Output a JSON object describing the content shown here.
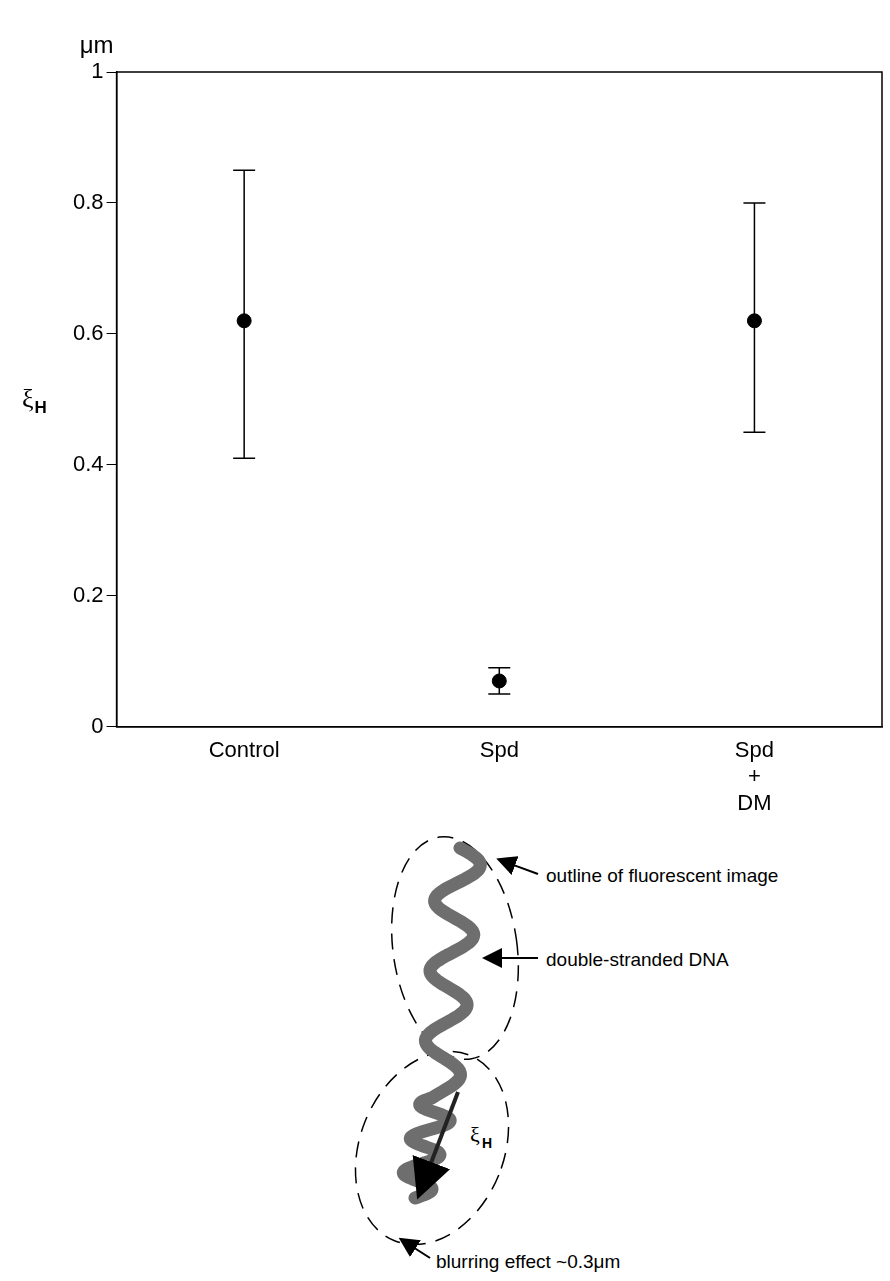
{
  "chart_data": {
    "type": "scatter",
    "unit": "μm",
    "y_label": "ξH",
    "categories": [
      "Control",
      "Spd",
      "Spd + DM"
    ],
    "values": [
      0.62,
      0.07,
      0.62
    ],
    "error_low": [
      0.41,
      0.05,
      0.45
    ],
    "error_high": [
      0.85,
      0.09,
      0.8
    ],
    "color": "#000000",
    "ylim": [
      0,
      1
    ],
    "yticks": [
      0,
      0.2,
      0.4,
      0.6,
      0.8,
      1
    ],
    "grid": false,
    "annotations": [
      "outline of fluorescent image",
      "double-stranded DNA",
      "ξH",
      "blurring effect ~0.3μm"
    ]
  }
}
